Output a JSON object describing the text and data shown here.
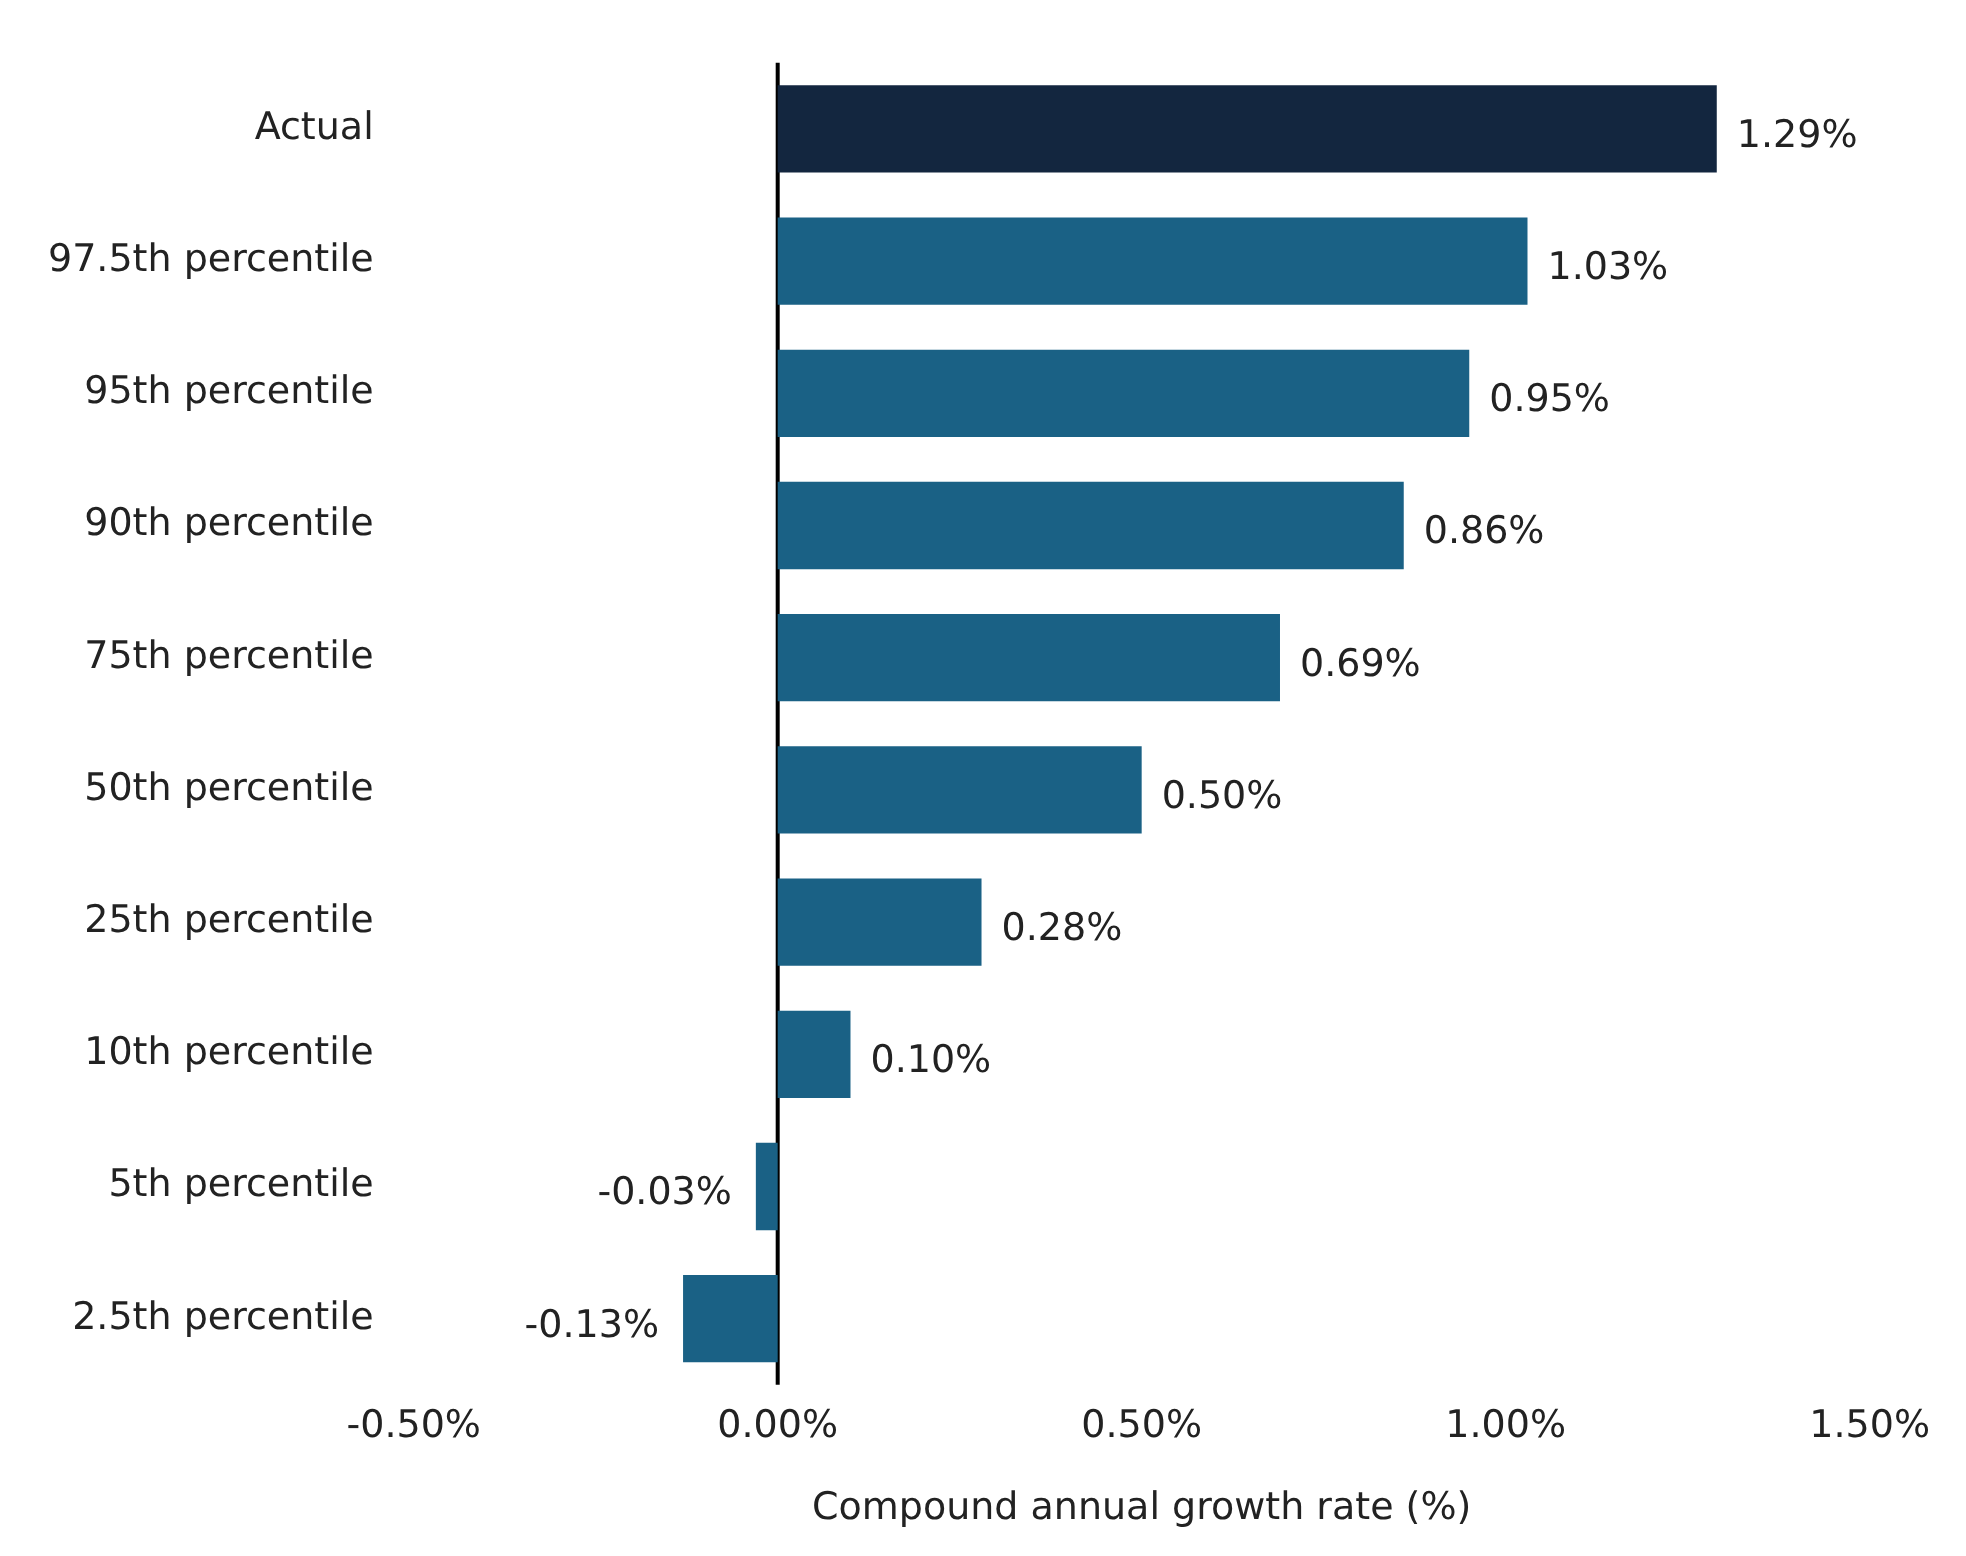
{
  "chart_data": {
    "type": "bar",
    "orientation": "horizontal",
    "xlabel": "Compound annual growth rate (%)",
    "categories": [
      "Actual",
      "97.5th percentile",
      "95th percentile",
      "90th percentile",
      "75th percentile",
      "50th percentile",
      "25th percentile",
      "10th percentile",
      "5th percentile",
      "2.5th percentile"
    ],
    "values": [
      1.29,
      1.03,
      0.95,
      0.86,
      0.69,
      0.5,
      0.28,
      0.1,
      -0.03,
      -0.13
    ],
    "colors": [
      "#13263f",
      "#1a6185",
      "#1a6185",
      "#1a6185",
      "#1a6185",
      "#1a6185",
      "#1a6185",
      "#1a6185",
      "#1a6185",
      "#1a6185"
    ],
    "value_labels": [
      "1.29%",
      "1.03%",
      "0.95%",
      "0.86%",
      "0.69%",
      "0.50%",
      "0.28%",
      "0.10%",
      "-0.03%",
      "-0.13%"
    ],
    "xlim": [
      -0.5,
      1.5
    ],
    "xticks": [
      {
        "value": -0.5,
        "label": "-0.50%"
      },
      {
        "value": 0,
        "label": "0.00%"
      },
      {
        "value": 0.5,
        "label": "0.50%"
      },
      {
        "value": 1,
        "label": "1.00%"
      },
      {
        "value": 1.5,
        "label": "1.50%"
      }
    ],
    "ref_lines": [
      {
        "axis": "x",
        "value": 0,
        "color": "#000000"
      }
    ],
    "grid": false,
    "legend": false
  }
}
